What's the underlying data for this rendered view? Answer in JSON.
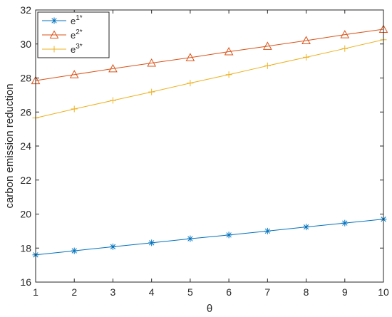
{
  "chart_data": {
    "type": "line",
    "xlabel": "θ",
    "ylabel": "carbon emission reduction",
    "xlim": [
      1,
      10
    ],
    "ylim": [
      16,
      32
    ],
    "xticks": [
      1,
      2,
      3,
      4,
      5,
      6,
      7,
      8,
      9,
      10
    ],
    "yticks": [
      16,
      18,
      20,
      22,
      24,
      26,
      28,
      30,
      32
    ],
    "grid": false,
    "legend_position": "top-left",
    "x": [
      1,
      2,
      3,
      4,
      5,
      6,
      7,
      8,
      9,
      10
    ],
    "series": [
      {
        "name": "e1*",
        "label_base": "e",
        "label_sup": "1*",
        "color": "#0072BD",
        "marker": "asterisk",
        "values": [
          17.6,
          17.84,
          18.08,
          18.31,
          18.55,
          18.77,
          19.0,
          19.24,
          19.47,
          19.7
        ]
      },
      {
        "name": "e2*",
        "label_base": "e",
        "label_sup": "2*",
        "color": "#D95319",
        "marker": "triangle",
        "values": [
          27.85,
          28.2,
          28.55,
          28.88,
          29.2,
          29.55,
          29.87,
          30.2,
          30.55,
          30.87
        ]
      },
      {
        "name": "e3*",
        "label_base": "e",
        "label_sup": "3*",
        "color": "#EDB120",
        "marker": "plus",
        "values": [
          25.65,
          26.18,
          26.68,
          27.18,
          27.7,
          28.2,
          28.72,
          29.22,
          29.73,
          30.25
        ]
      }
    ]
  }
}
